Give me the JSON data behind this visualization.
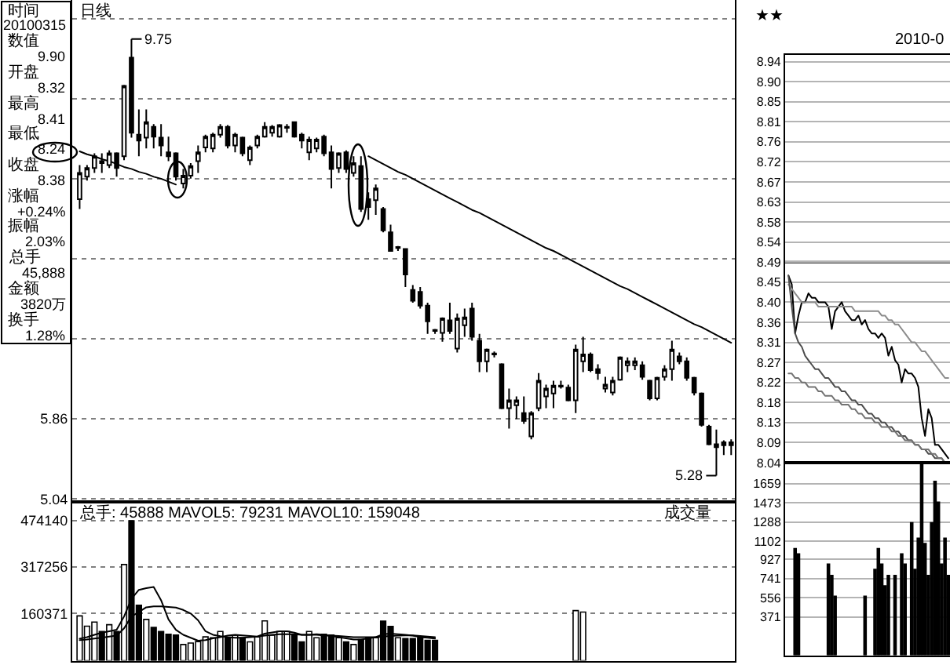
{
  "chart_data": [
    {
      "type": "other",
      "annotations": [
        "时间",
        "20100315",
        "数值",
        "9.90",
        "开盘",
        "8.32",
        "最高",
        "8.41",
        "最低",
        "8.24",
        "收盘",
        "8.38",
        "涨幅",
        "+0.24%",
        "振幅",
        "2.03%",
        "总手",
        "45,888",
        "金额",
        "3820万",
        "换手",
        "1.28%"
      ]
    },
    {
      "type": "candlestick",
      "title": "日线",
      "categories": [
        null,
        null,
        null,
        null,
        null,
        null,
        null,
        null,
        null,
        null,
        null,
        null,
        null,
        null,
        null,
        null,
        null,
        null,
        null,
        null,
        null,
        null,
        null,
        null,
        null,
        null,
        null,
        null,
        null,
        null,
        null,
        null,
        null,
        null,
        null,
        null,
        null,
        null,
        null,
        null,
        null,
        null,
        null,
        null,
        null,
        null,
        null,
        null,
        null,
        null,
        null,
        null,
        null,
        null,
        null,
        null,
        null,
        null,
        null,
        null,
        null,
        null,
        null,
        null,
        null,
        null,
        null,
        null,
        null,
        null,
        null,
        null,
        null,
        null,
        null,
        null,
        null,
        null,
        null,
        null,
        null,
        null,
        null,
        null,
        null,
        null,
        null,
        null,
        null
      ],
      "ohlc": [
        [
          8.11,
          8.46,
          8.01,
          8.38
        ],
        [
          8.34,
          8.46,
          8.3,
          8.43
        ],
        [
          8.43,
          8.58,
          8.38,
          8.55
        ],
        [
          8.5,
          8.58,
          8.38,
          8.48
        ],
        [
          8.46,
          8.61,
          8.43,
          8.58
        ],
        [
          8.58,
          8.59,
          8.34,
          8.43
        ],
        [
          8.55,
          9.28,
          8.51,
          9.27
        ],
        [
          9.56,
          9.75,
          8.74,
          8.79
        ],
        [
          8.77,
          9.03,
          8.55,
          8.71
        ],
        [
          8.74,
          9.03,
          8.63,
          8.9
        ],
        [
          8.85,
          8.88,
          8.63,
          8.75
        ],
        [
          8.74,
          8.88,
          8.55,
          8.66
        ],
        [
          8.59,
          8.75,
          8.5,
          8.55
        ],
        [
          8.58,
          8.59,
          8.3,
          8.34
        ],
        [
          8.27,
          8.42,
          8.22,
          8.35
        ],
        [
          8.35,
          8.48,
          8.32,
          8.45
        ],
        [
          8.5,
          8.66,
          8.38,
          8.59
        ],
        [
          8.64,
          8.77,
          8.59,
          8.75
        ],
        [
          8.63,
          8.79,
          8.59,
          8.77
        ],
        [
          8.77,
          8.88,
          8.74,
          8.85
        ],
        [
          8.85,
          8.87,
          8.63,
          8.66
        ],
        [
          8.66,
          8.79,
          8.59,
          8.77
        ],
        [
          8.74,
          8.75,
          8.55,
          8.58
        ],
        [
          8.51,
          8.66,
          8.46,
          8.64
        ],
        [
          8.66,
          8.77,
          8.63,
          8.75
        ],
        [
          8.75,
          8.9,
          8.74,
          8.85
        ],
        [
          8.79,
          8.87,
          8.75,
          8.85
        ],
        [
          8.75,
          8.88,
          8.74,
          8.87
        ],
        [
          8.84,
          8.88,
          8.79,
          8.85
        ],
        [
          8.9,
          8.9,
          8.74,
          8.75
        ],
        [
          8.77,
          8.79,
          8.63,
          8.71
        ],
        [
          8.59,
          8.75,
          8.51,
          8.72
        ],
        [
          8.63,
          8.74,
          8.59,
          8.72
        ],
        [
          8.75,
          8.77,
          8.55,
          8.58
        ],
        [
          8.59,
          8.66,
          8.22,
          8.42
        ],
        [
          8.43,
          8.59,
          8.38,
          8.58
        ],
        [
          8.59,
          8.61,
          8.38,
          8.42
        ],
        [
          8.38,
          8.55,
          8.34,
          8.48
        ],
        [
          8.45,
          8.55,
          7.98,
          8.01
        ],
        [
          8.11,
          8.18,
          7.9,
          8.03
        ],
        [
          8.1,
          8.26,
          7.95,
          8.22
        ],
        [
          8.01,
          8.03,
          7.77,
          7.79
        ],
        [
          7.77,
          7.85,
          7.58,
          7.58
        ],
        [
          7.61,
          7.63,
          7.58,
          7.62
        ],
        [
          7.6,
          7.6,
          7.21,
          7.34
        ],
        [
          7.18,
          7.23,
          7.05,
          7.07
        ],
        [
          7.16,
          7.21,
          6.99,
          7.02
        ],
        [
          7.02,
          7.05,
          6.73,
          6.86
        ],
        [
          6.77,
          6.78,
          6.73,
          6.76
        ],
        [
          6.74,
          6.9,
          6.65,
          6.89
        ],
        [
          6.87,
          7.05,
          6.73,
          6.76
        ],
        [
          6.58,
          6.94,
          6.54,
          6.89
        ],
        [
          6.82,
          6.99,
          6.7,
          6.9
        ],
        [
          6.99,
          7.05,
          6.66,
          6.7
        ],
        [
          6.66,
          6.73,
          6.34,
          6.45
        ],
        [
          6.45,
          6.58,
          6.34,
          6.57
        ],
        [
          6.52,
          6.55,
          6.49,
          6.53
        ],
        [
          6.42,
          6.43,
          5.96,
          5.97
        ],
        [
          5.97,
          6.17,
          5.76,
          6.05
        ],
        [
          6.0,
          6.09,
          5.86,
          6.05
        ],
        [
          5.92,
          6.09,
          5.81,
          5.84
        ],
        [
          5.68,
          5.94,
          5.65,
          5.92
        ],
        [
          5.97,
          6.33,
          5.94,
          6.25
        ],
        [
          6.09,
          6.21,
          5.97,
          6.17
        ],
        [
          6.12,
          6.25,
          5.97,
          6.2
        ],
        [
          6.19,
          6.25,
          6.17,
          6.2
        ],
        [
          6.18,
          6.21,
          6.04,
          6.05
        ],
        [
          6.05,
          6.62,
          5.92,
          6.57
        ],
        [
          6.45,
          6.7,
          6.34,
          6.52
        ],
        [
          6.52,
          6.54,
          6.34,
          6.36
        ],
        [
          6.37,
          6.42,
          6.26,
          6.33
        ],
        [
          6.17,
          6.29,
          6.13,
          6.21
        ],
        [
          6.13,
          6.29,
          6.1,
          6.25
        ],
        [
          6.26,
          6.5,
          6.25,
          6.49
        ],
        [
          6.41,
          6.49,
          6.34,
          6.45
        ],
        [
          6.41,
          6.49,
          6.36,
          6.45
        ],
        [
          6.41,
          6.45,
          6.26,
          6.29
        ],
        [
          6.25,
          6.26,
          6.05,
          6.07
        ],
        [
          6.07,
          6.29,
          6.05,
          6.28
        ],
        [
          6.29,
          6.41,
          6.25,
          6.37
        ],
        [
          6.37,
          6.66,
          6.25,
          6.57
        ],
        [
          6.5,
          6.54,
          6.42,
          6.45
        ],
        [
          6.45,
          6.49,
          6.25,
          6.28
        ],
        [
          6.28,
          6.29,
          6.1,
          6.13
        ],
        [
          6.12,
          6.13,
          5.78,
          5.8
        ],
        [
          5.78,
          5.8,
          5.59,
          5.6
        ],
        [
          5.6,
          5.75,
          5.28,
          5.57
        ],
        [
          5.59,
          5.64,
          5.49,
          5.62
        ],
        [
          5.59,
          5.65,
          5.49,
          5.62
        ]
      ],
      "series": [
        {
          "type": "line",
          "color": "#000000",
          "values": [
            8.6,
            8.57,
            8.55,
            8.52,
            8.5,
            8.47,
            8.44,
            8.42,
            8.39,
            8.37,
            8.34,
            8.32,
            8.29,
            8.26,
            null,
            null,
            null,
            null,
            null,
            null,
            null,
            null,
            null,
            null,
            null,
            null,
            null,
            null,
            null,
            null,
            null,
            null,
            null,
            null,
            null,
            null,
            null,
            null,
            null,
            null,
            null,
            null,
            null,
            null,
            null,
            null,
            null,
            null,
            null,
            null,
            null,
            null,
            null,
            null,
            null,
            null,
            null,
            null,
            null,
            null,
            null,
            null,
            null,
            null,
            null,
            null,
            null,
            null,
            null,
            null,
            null,
            null,
            null,
            null,
            null,
            null,
            null,
            null,
            null,
            null,
            null,
            null,
            null,
            null,
            null,
            null,
            null,
            null,
            null
          ]
        },
        {
          "type": "line",
          "color": "#000000",
          "values": [
            null,
            null,
            null,
            null,
            null,
            null,
            null,
            null,
            null,
            null,
            null,
            null,
            null,
            null,
            null,
            null,
            null,
            null,
            null,
            null,
            null,
            null,
            null,
            null,
            null,
            null,
            null,
            null,
            null,
            null,
            null,
            null,
            null,
            null,
            null,
            null,
            null,
            null,
            null,
            8.55,
            8.51,
            8.47,
            8.43,
            8.39,
            8.36,
            8.32,
            8.28,
            8.24,
            8.2,
            8.16,
            8.12,
            8.08,
            8.04,
            8.0,
            7.97,
            7.93,
            7.89,
            7.85,
            7.81,
            7.77,
            7.73,
            7.69,
            7.65,
            7.61,
            7.58,
            7.54,
            7.5,
            7.46,
            7.42,
            7.38,
            7.34,
            7.3,
            7.26,
            7.22,
            7.19,
            7.15,
            7.11,
            7.07,
            7.03,
            6.99,
            6.95,
            6.91,
            6.87,
            6.83,
            6.8,
            6.76,
            6.72,
            6.68,
            6.64
          ]
        }
      ],
      "ylim": [
        5.01,
        10.15
      ],
      "yticks": [
        5.04,
        5.86,
        {
          "value": 6.68,
          "label": null
        },
        {
          "value": 7.5,
          "label": null
        },
        {
          "value": 8.32,
          "label": null
        },
        {
          "value": 9.14,
          "label": null
        },
        {
          "value": 9.96,
          "label": null
        }
      ],
      "grid": "y",
      "tick_labels": "y",
      "annotations": [
        "9.75",
        "5.28"
      ]
    },
    {
      "type": "bar",
      "title": "总手: 45888 MAVOL5: 79231 MAVOL10: 159048",
      "annotations": [
        "成交量"
      ],
      "categories": [
        null,
        null,
        null,
        null,
        null,
        null,
        null,
        null,
        null,
        null,
        null,
        null,
        null,
        null,
        null,
        null,
        null,
        null,
        null,
        null,
        null,
        null,
        null,
        null,
        null,
        null,
        null,
        null,
        null,
        null,
        null,
        null,
        null,
        null,
        null,
        null,
        null,
        null,
        null,
        null,
        null,
        null,
        null,
        null,
        null,
        null,
        null,
        null,
        null,
        null,
        null,
        null,
        null,
        null,
        null,
        null,
        null,
        null,
        null,
        null,
        null,
        null,
        null,
        null,
        null,
        null,
        null,
        null,
        null,
        null,
        null,
        null,
        null,
        null,
        null,
        null,
        null,
        null,
        null,
        null,
        null,
        null,
        null,
        null,
        null,
        null,
        null,
        null,
        null
      ],
      "series": [
        {
          "type": "bar",
          "values": [
            152000,
            117000,
            131000,
            99000,
            122000,
            99000,
            326000,
            474140,
            188000,
            140000,
            113000,
            99000,
            90000,
            87000,
            55000,
            60000,
            65000,
            81000,
            78000,
            99000,
            78000,
            87000,
            78000,
            64000,
            81000,
            135000,
            87000,
            99000,
            99000,
            90000,
            64000,
            99000,
            78000,
            90000,
            87000,
            78000,
            64000,
            55000,
            72000,
            78000,
            78000,
            134000,
            116000,
            78000,
            75000,
            75000,
            78000,
            69000,
            69000,
            null,
            null,
            null,
            null,
            null,
            null,
            null,
            null,
            null,
            null,
            null,
            null,
            null,
            null,
            null,
            null,
            null,
            null,
            170000,
            165000,
            null,
            null,
            null,
            null,
            null,
            null,
            null,
            null,
            null,
            null,
            null,
            null,
            null,
            null,
            null,
            null,
            null,
            null,
            null,
            null
          ],
          "colors": [
            "#ffffff",
            "#ffffff",
            "#ffffff",
            "#000000",
            "#ffffff",
            "#000000",
            "#ffffff",
            "#000000",
            "#000000",
            "#ffffff",
            "#000000",
            "#000000",
            "#000000",
            "#000000",
            "#ffffff",
            "#ffffff",
            "#ffffff",
            "#ffffff",
            "#ffffff",
            "#ffffff",
            "#000000",
            "#ffffff",
            "#000000",
            "#ffffff",
            "#ffffff",
            "#ffffff",
            "#ffffff",
            "#ffffff",
            "#ffffff",
            "#000000",
            "#000000",
            "#ffffff",
            "#ffffff",
            "#000000",
            "#000000",
            "#ffffff",
            "#000000",
            "#ffffff",
            "#000000",
            "#000000",
            "#ffffff",
            "#000000",
            "#000000",
            "#ffffff",
            "#000000",
            "#000000",
            "#000000",
            "#000000",
            "#000000",
            "#ffffff",
            "#000000",
            "#ffffff",
            "#ffffff",
            "#000000",
            "#000000",
            "#ffffff",
            "#ffffff",
            "#000000",
            "#ffffff",
            "#ffffff",
            "#000000",
            "#ffffff",
            "#ffffff",
            "#ffffff",
            "#ffffff",
            "#ffffff",
            "#000000",
            "#ffffff",
            "#ffffff",
            "#000000",
            "#000000",
            "#ffffff",
            "#ffffff",
            "#ffffff",
            "#ffffff",
            "#ffffff",
            "#000000",
            "#000000",
            "#ffffff",
            "#ffffff",
            "#ffffff",
            "#000000",
            "#000000",
            "#000000",
            "#000000",
            "#000000",
            "#000000",
            "#ffffff",
            "#ffffff"
          ]
        },
        {
          "type": "line",
          "color": "#000000",
          "values": [
            75000,
            80000,
            88000,
            95000,
            100000,
            105000,
            150000,
            210000,
            240000,
            246000,
            250000,
            205000,
            140000,
            105000,
            88000,
            78000,
            68000,
            70000,
            76000,
            80000,
            85000,
            88000,
            86000,
            84000,
            82000,
            92000,
            96000,
            100000,
            100000,
            95000,
            88000,
            88000,
            90000,
            88000,
            84000,
            80000,
            76000,
            72000,
            72000,
            76000,
            80000,
            90000,
            92000,
            90000,
            88000,
            85000,
            80000,
            78000,
            75000,
            null,
            null,
            null,
            null,
            null,
            null,
            null,
            null,
            null,
            null,
            null,
            null,
            null,
            null,
            null,
            null,
            null,
            null,
            null,
            null,
            null,
            null,
            null,
            null,
            null,
            null,
            null,
            null,
            null,
            null,
            null,
            null,
            null,
            null,
            null,
            null,
            null,
            null,
            null,
            null
          ]
        },
        {
          "type": "line",
          "color": "#000000",
          "values": [
            70000,
            72000,
            75000,
            78000,
            82000,
            85000,
            110000,
            150000,
            165000,
            181000,
            184000,
            184000,
            182000,
            180000,
            172000,
            160000,
            137000,
            100000,
            88000,
            83000,
            80000,
            78000,
            78000,
            80000,
            82000,
            85000,
            88000,
            90000,
            90000,
            90000,
            88000,
            88000,
            88000,
            86000,
            85000,
            84000,
            82000,
            80000,
            80000,
            80000,
            80000,
            82000,
            84000,
            85000,
            86000,
            86000,
            84000,
            82000,
            80000,
            null,
            null,
            null,
            null,
            null,
            null,
            null,
            null,
            null,
            null,
            null,
            null,
            null,
            null,
            null,
            null,
            null,
            null,
            null,
            null,
            null,
            null,
            null,
            null,
            null,
            null,
            null,
            null,
            null,
            null,
            null,
            null,
            null,
            null,
            null,
            null,
            null,
            null,
            null,
            null
          ]
        }
      ],
      "ylim": [
        0,
        538000
      ],
      "yticks": [
        160371,
        317256,
        474140
      ],
      "grid": "y",
      "tick_labels": "y"
    },
    {
      "type": "line",
      "annotations": [
        "★★",
        "2010-0"
      ],
      "categories": [
        null,
        null,
        null,
        null,
        null,
        null,
        null,
        null,
        null,
        null,
        null,
        null,
        null,
        null,
        null,
        null,
        null,
        null,
        null,
        null,
        null,
        null,
        null,
        null,
        null,
        null,
        null,
        null,
        null,
        null,
        null,
        null,
        null,
        null,
        null,
        null,
        null,
        null,
        null,
        null,
        null,
        null,
        null,
        null,
        null,
        null,
        null,
        null,
        null
      ],
      "ylim": [
        8.04,
        8.955
      ],
      "yticks": [
        8.94,
        {
          "value": 8.895,
          "label": "8.90"
        },
        8.85,
        {
          "value": 8.805,
          "label": "8.81"
        },
        8.76,
        {
          "value": 8.715,
          "label": "8.72"
        },
        8.67,
        {
          "value": 8.625,
          "label": "8.63"
        },
        8.58,
        {
          "value": 8.535,
          "label": "8.54"
        },
        8.49,
        {
          "value": 8.445,
          "label": "8.45"
        },
        {
          "value": 8.4,
          "label": "8.40"
        },
        {
          "value": 8.355,
          "label": "8.36"
        },
        8.31,
        {
          "value": 8.265,
          "label": "8.27"
        },
        8.22,
        {
          "value": 8.175,
          "label": "8.18"
        },
        8.13,
        {
          "value": 8.085,
          "label": "8.09"
        },
        8.04
      ],
      "grid": "y",
      "tick_labels": "y",
      "ref_lines": [
        {
          "axis": "y",
          "value": 8.49
        }
      ],
      "series": [
        {
          "type": "line",
          "color": "#000000",
          "values": [
            8.46,
            8.44,
            8.33,
            8.37,
            8.4,
            8.4,
            8.42,
            8.41,
            8.41,
            8.4,
            8.4,
            8.4,
            8.39,
            8.34,
            8.38,
            8.39,
            8.4,
            8.38,
            8.37,
            8.36,
            8.36,
            8.37,
            8.35,
            8.36,
            8.34,
            8.33,
            8.33,
            8.32,
            8.33,
            8.32,
            8.28,
            8.3,
            8.27,
            8.26,
            8.22,
            8.25,
            8.24,
            8.24,
            8.23,
            8.21,
            8.14,
            8.1,
            8.16,
            8.14,
            8.08,
            8.08,
            8.07,
            8.06,
            8.05
          ]
        },
        {
          "type": "line",
          "color": "#8c8c8c",
          "values": [
            8.44,
            8.43,
            8.42,
            8.41,
            8.4,
            8.4,
            8.4,
            8.4,
            8.4,
            8.39,
            8.39,
            8.39,
            8.39,
            8.39,
            8.39,
            8.39,
            8.39,
            8.39,
            8.39,
            8.39,
            8.38,
            8.38,
            8.38,
            8.38,
            8.38,
            8.38,
            8.38,
            8.38,
            8.37,
            8.37,
            8.36,
            8.36,
            8.35,
            8.35,
            8.34,
            8.33,
            8.32,
            8.31,
            8.31,
            8.3,
            8.29,
            8.29,
            8.28,
            8.27,
            8.26,
            8.25,
            8.24,
            8.23,
            8.23
          ]
        },
        {
          "type": "line",
          "color": "#4d4d4d",
          "values": [
            8.46,
            8.39,
            8.33,
            8.31,
            8.3,
            8.28,
            8.27,
            8.26,
            8.25,
            8.25,
            8.24,
            8.23,
            8.23,
            8.22,
            8.21,
            8.21,
            8.2,
            8.2,
            8.19,
            8.18,
            8.18,
            8.17,
            8.17,
            8.16,
            8.15,
            8.15,
            8.14,
            8.14,
            8.13,
            8.13,
            8.12,
            8.12,
            8.11,
            8.11,
            8.1,
            8.1,
            8.09,
            8.09,
            8.08,
            8.08,
            8.07,
            8.07,
            8.06,
            8.06,
            8.05,
            8.05,
            8.05,
            8.04,
            8.04
          ]
        },
        {
          "type": "line",
          "color": "#737373",
          "values": [
            8.24,
            8.24,
            8.23,
            8.23,
            8.22,
            8.22,
            8.21,
            8.21,
            8.21,
            8.2,
            8.2,
            8.19,
            8.19,
            8.19,
            8.18,
            8.18,
            8.17,
            8.17,
            8.17,
            8.16,
            8.16,
            8.15,
            8.15,
            8.14,
            8.14,
            8.14,
            8.13,
            8.13,
            8.12,
            8.12,
            8.12,
            8.11,
            8.11,
            8.1,
            8.1,
            8.09,
            8.09,
            8.09,
            8.08,
            8.08,
            8.07,
            8.07,
            8.07,
            8.06,
            8.06,
            8.05,
            8.05,
            8.04,
            8.04
          ]
        }
      ]
    },
    {
      "type": "bar",
      "categories": [
        null,
        null,
        null,
        null,
        null,
        null,
        null,
        null,
        null,
        null,
        null,
        null,
        null,
        null,
        null,
        null,
        null,
        null,
        null,
        null,
        null,
        null,
        null,
        null,
        null,
        null,
        null,
        null,
        null,
        null,
        null,
        null,
        null,
        null,
        null,
        null,
        null,
        null,
        null,
        null,
        null,
        null,
        null,
        null,
        null,
        null,
        null,
        null,
        null
      ],
      "ylim": [
        0,
        1860
      ],
      "yticks": [
        1659,
        1473,
        1288,
        1102,
        927,
        741,
        556,
        371
      ],
      "grid": "y",
      "tick_labels": "y",
      "values": [
        null,
        null,
        1030,
        980,
        null,
        null,
        null,
        null,
        null,
        null,
        null,
        null,
        880,
        770,
        570,
        null,
        null,
        null,
        null,
        null,
        null,
        null,
        null,
        570,
        null,
        null,
        830,
        1030,
        880,
        670,
        770,
        null,
        770,
        null,
        980,
        880,
        null,
        1280,
        830,
        1130,
        1840,
        1080,
        770,
        1280,
        1680,
        1480,
        880,
        1130,
        770
      ],
      "color": "#000000"
    }
  ]
}
